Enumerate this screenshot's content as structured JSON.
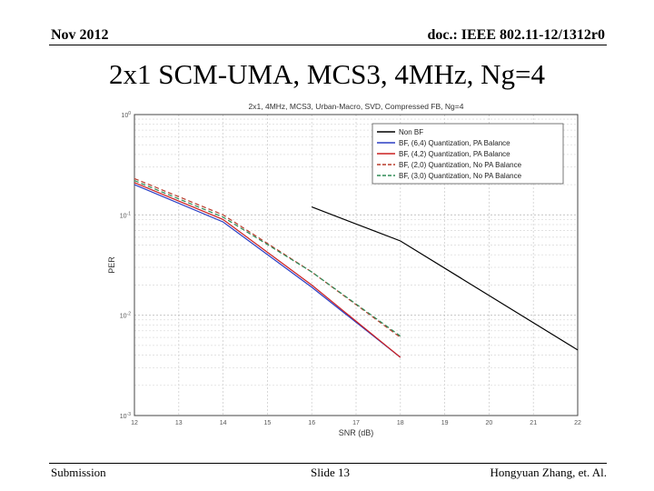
{
  "header": {
    "date": "Nov 2012",
    "doc": "doc.: IEEE 802.11-12/1312r0"
  },
  "slide_title": "2x1 SCM-UMA, MCS3, 4MHz, Ng=4",
  "footer": {
    "left": "Submission",
    "center": "Slide 13",
    "right": "Hongyuan Zhang, et. Al."
  },
  "chart_data": {
    "type": "line",
    "title": "2x1, 4MHz, MCS3, Urban-Macro, SVD, Compressed FB, Ng=4",
    "xlabel": "SNR (dB)",
    "ylabel": "PER",
    "xlim": [
      12,
      22
    ],
    "ylim": [
      0.001,
      1
    ],
    "yscale": "log",
    "grid": true,
    "legend_position": "top-right",
    "x_ticks": [
      "12",
      "13",
      "14",
      "15",
      "16",
      "17",
      "18",
      "19",
      "20",
      "21",
      "22"
    ],
    "y_ticks": [
      {
        "value": 1,
        "base": "10",
        "exp": "0"
      },
      {
        "value": 0.1,
        "base": "10",
        "exp": "-1"
      },
      {
        "value": 0.01,
        "base": "10",
        "exp": "-2"
      },
      {
        "value": 0.001,
        "base": "10",
        "exp": "-3"
      }
    ],
    "series": [
      {
        "name": "Non BF",
        "color": "#000000",
        "dash": "solid",
        "x": [
          16,
          18,
          22
        ],
        "y": [
          0.12,
          0.055,
          0.0045
        ]
      },
      {
        "name": "BF, (6,4) Quantization, PA Balance",
        "color": "#2b3fc4",
        "dash": "solid",
        "x": [
          12,
          14,
          16,
          18
        ],
        "y": [
          0.2,
          0.085,
          0.019,
          0.0038
        ]
      },
      {
        "name": "BF, (4,2) Quantization, PA Balance",
        "color": "#cc2020",
        "dash": "solid",
        "x": [
          12,
          14,
          16,
          18
        ],
        "y": [
          0.21,
          0.09,
          0.02,
          0.0038
        ]
      },
      {
        "name": "BF, (2,0) Quantization, No PA Balance",
        "color": "#b83a2a",
        "dash": "dashed",
        "x": [
          12,
          14,
          16,
          18
        ],
        "y": [
          0.23,
          0.1,
          0.027,
          0.006
        ]
      },
      {
        "name": "BF, (3,0) Quantization, No PA Balance",
        "color": "#2e8b57",
        "dash": "dashed",
        "x": [
          12,
          14,
          16,
          18
        ],
        "y": [
          0.22,
          0.095,
          0.027,
          0.0062
        ]
      }
    ]
  }
}
